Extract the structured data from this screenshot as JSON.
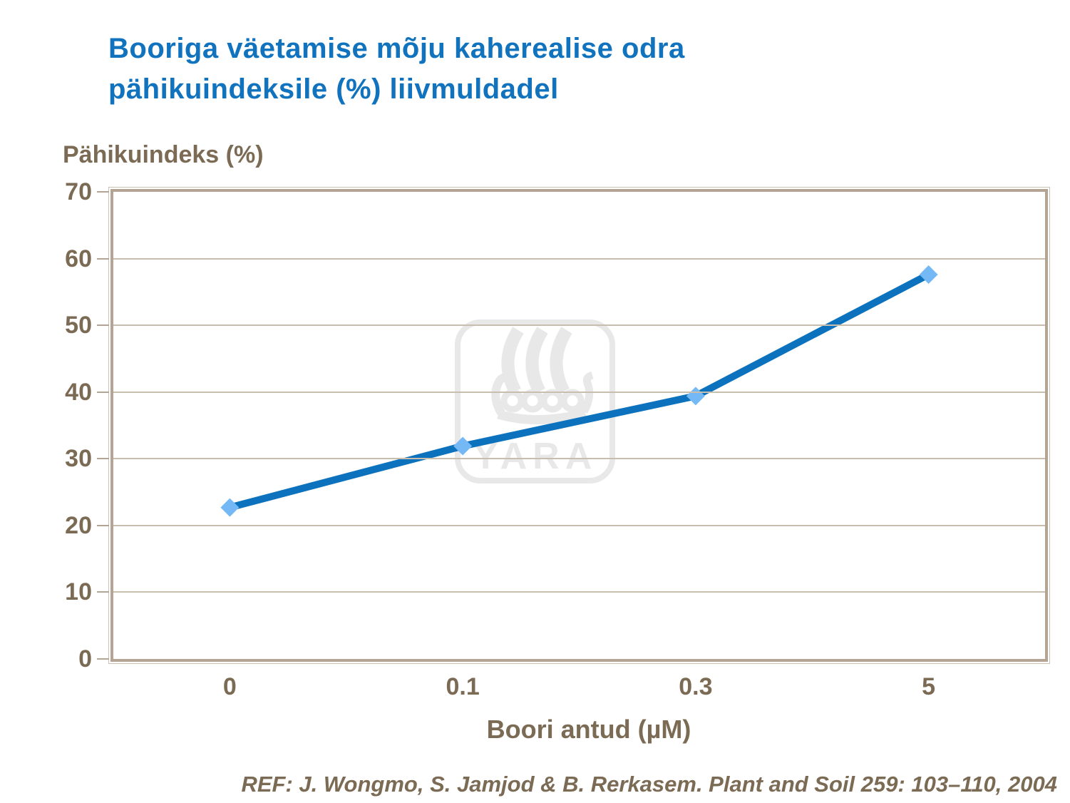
{
  "header": {
    "title_line1": "Booriga väetamise mõju kaherealise odra",
    "title_line2": "pähikuindeksile (%) liivmuldadel"
  },
  "chart_data": {
    "type": "line",
    "title": "Booriga väetamise mõju kaherealise odra pähikuindeksile (%) liivmuldadel",
    "xlabel": "Boori antud (µM)",
    "ylabel": "Pähikuindeks (%)",
    "categories": [
      "0",
      "0.1",
      "0.3",
      "5"
    ],
    "series": [
      {
        "name": "Pähikuindeks (%)",
        "values": [
          22.7,
          31.9,
          39.4,
          57.6
        ]
      }
    ],
    "ylim": [
      0,
      70
    ],
    "yticks": [
      0,
      10,
      20,
      30,
      40,
      50,
      60,
      70
    ],
    "grid": true,
    "legend": false,
    "marker": "diamond",
    "line_color": "#0d72bd",
    "marker_color": "#74b9f5"
  },
  "watermark": {
    "name": "yara-logo",
    "text": "YARA",
    "color": "#e8e8e8"
  },
  "footer": {
    "reference": "REF: J. Wongmo, S. Jamjod & B. Rerkasem. Plant and Soil 259: 103–110, 2004"
  },
  "colors": {
    "title_blue": "#1173bd",
    "axis_text_brown": "#7c6b54",
    "frame_taupe": "#b3a493",
    "gridline": "#c9bdad"
  }
}
